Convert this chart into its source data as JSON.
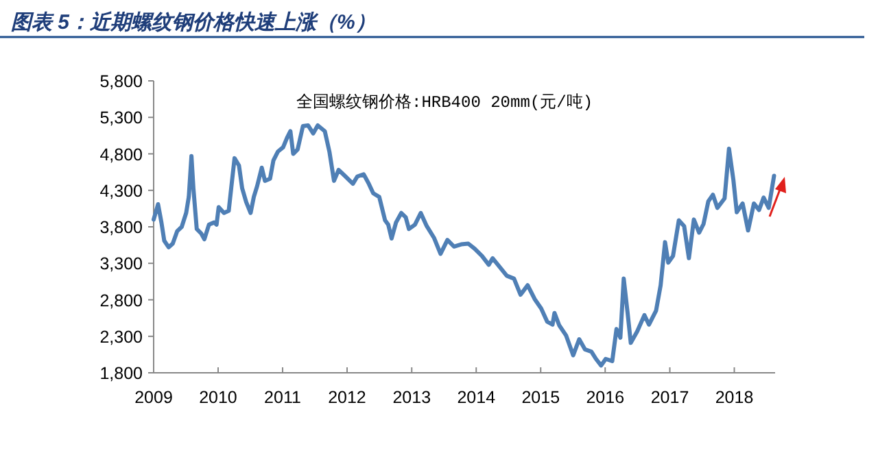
{
  "chart_data": {
    "type": "line",
    "title": "图表 5：近期螺纹钢价格快速上涨（%）",
    "annotations": [
      "全国螺纹钢价格:HRB400 20mm(元/吨)"
    ],
    "xlim": [
      "2009-01-01",
      "2018-08-20"
    ],
    "xticks": [
      {
        "value": "2009-01-01",
        "label": "2009"
      },
      {
        "value": "2010-01-01",
        "label": "2010"
      },
      {
        "value": "2011-01-01",
        "label": "2011"
      },
      {
        "value": "2012-01-01",
        "label": "2012"
      },
      {
        "value": "2013-01-01",
        "label": "2013"
      },
      {
        "value": "2014-01-01",
        "label": "2014"
      },
      {
        "value": "2015-01-01",
        "label": "2015"
      },
      {
        "value": "2016-01-01",
        "label": "2016"
      },
      {
        "value": "2017-01-01",
        "label": "2017"
      },
      {
        "value": "2018-01-01",
        "label": "2018"
      }
    ],
    "ylim": [
      1800,
      5800
    ],
    "yticks": [
      {
        "value": 1800,
        "label": "1,800"
      },
      {
        "value": 2300,
        "label": "2,300"
      },
      {
        "value": 2800,
        "label": "2,800"
      },
      {
        "value": 3300,
        "label": "3,300"
      },
      {
        "value": 3800,
        "label": "3,800"
      },
      {
        "value": 4300,
        "label": "4,300"
      },
      {
        "value": 4800,
        "label": "4,800"
      },
      {
        "value": 5300,
        "label": "5,300"
      },
      {
        "value": 5800,
        "label": "5,800"
      }
    ],
    "grid": false,
    "marker": "none",
    "line_style": "solid",
    "series": [
      {
        "color": "#4f7fb5",
        "x": [
          "2009-01-01",
          "2009-01-26",
          "2009-02-14",
          "2009-03-02",
          "2009-03-27",
          "2009-04-19",
          "2009-05-14",
          "2009-06-09",
          "2009-07-04",
          "2009-07-19",
          "2009-08-03",
          "2009-08-14",
          "2009-09-02",
          "2009-09-27",
          "2009-10-15",
          "2009-11-10",
          "2009-12-09",
          "2009-12-23",
          "2010-01-04",
          "2010-02-03",
          "2010-03-02",
          "2010-03-16",
          "2010-04-04",
          "2010-04-29",
          "2010-05-17",
          "2010-06-09",
          "2010-07-04",
          "2010-07-22",
          "2010-08-10",
          "2010-09-05",
          "2010-09-23",
          "2010-10-22",
          "2010-11-10",
          "2010-12-05",
          "2011-01-04",
          "2011-01-26",
          "2011-02-14",
          "2011-03-02",
          "2011-03-27",
          "2011-04-26",
          "2011-05-25",
          "2011-06-23",
          "2011-07-19",
          "2011-08-28",
          "2011-09-23",
          "2011-10-19",
          "2011-11-14",
          "2011-12-23",
          "2012-02-03",
          "2012-02-28",
          "2012-04-04",
          "2012-05-03",
          "2012-05-28",
          "2012-07-01",
          "2012-08-03",
          "2012-08-21",
          "2012-09-09",
          "2012-10-04",
          "2012-11-03",
          "2012-11-28",
          "2012-12-16",
          "2013-01-19",
          "2013-02-21",
          "2013-03-27",
          "2013-05-07",
          "2013-06-13",
          "2013-07-22",
          "2013-08-28",
          "2013-10-08",
          "2013-11-17",
          "2013-12-23",
          "2014-02-03",
          "2014-03-13",
          "2014-04-04",
          "2014-05-14",
          "2014-06-23",
          "2014-08-03",
          "2014-09-09",
          "2014-10-19",
          "2014-11-28",
          "2015-01-04",
          "2015-02-07",
          "2015-03-09",
          "2015-03-20",
          "2015-04-16",
          "2015-05-25",
          "2015-07-04",
          "2015-08-07",
          "2015-09-09",
          "2015-10-15",
          "2015-11-10",
          "2015-12-09",
          "2016-01-04",
          "2016-02-10",
          "2016-03-05",
          "2016-03-27",
          "2016-04-15",
          "2016-05-07",
          "2016-05-25",
          "2016-07-01",
          "2016-08-10",
          "2016-09-05",
          "2016-10-15",
          "2016-11-10",
          "2016-12-05",
          "2016-12-23",
          "2017-01-19",
          "2017-02-21",
          "2017-03-23",
          "2017-04-19",
          "2017-05-17",
          "2017-06-16",
          "2017-07-11",
          "2017-08-07",
          "2017-09-02",
          "2017-09-27",
          "2017-11-07",
          "2017-12-02",
          "2017-12-27",
          "2018-01-15",
          "2018-02-17",
          "2018-03-20",
          "2018-04-22",
          "2018-05-21",
          "2018-06-16",
          "2018-07-15",
          "2018-08-14"
        ],
        "values": [
          3900,
          4110,
          3860,
          3610,
          3520,
          3570,
          3740,
          3800,
          3990,
          4210,
          4770,
          4330,
          3770,
          3710,
          3630,
          3830,
          3860,
          3830,
          4070,
          3990,
          4020,
          4330,
          4740,
          4640,
          4330,
          4140,
          3990,
          4210,
          4360,
          4610,
          4430,
          4460,
          4710,
          4830,
          4890,
          5020,
          5110,
          4800,
          4860,
          5180,
          5190,
          5080,
          5190,
          5110,
          4830,
          4430,
          4580,
          4490,
          4390,
          4490,
          4520,
          4390,
          4260,
          4210,
          3890,
          3830,
          3640,
          3860,
          3990,
          3930,
          3770,
          3830,
          3990,
          3810,
          3650,
          3430,
          3620,
          3530,
          3560,
          3570,
          3500,
          3400,
          3280,
          3370,
          3250,
          3130,
          3090,
          2870,
          3000,
          2810,
          2680,
          2500,
          2460,
          2620,
          2450,
          2310,
          2040,
          2260,
          2120,
          2090,
          1990,
          1900,
          1990,
          1960,
          2400,
          2280,
          3090,
          2620,
          2210,
          2370,
          2590,
          2460,
          2650,
          3000,
          3590,
          3310,
          3400,
          3890,
          3810,
          3370,
          3900,
          3720,
          3840,
          4150,
          4240,
          4060,
          4190,
          4870,
          4440,
          4000,
          4120,
          3750,
          4120,
          4030,
          4200,
          4060,
          4500
        ]
      }
    ]
  }
}
